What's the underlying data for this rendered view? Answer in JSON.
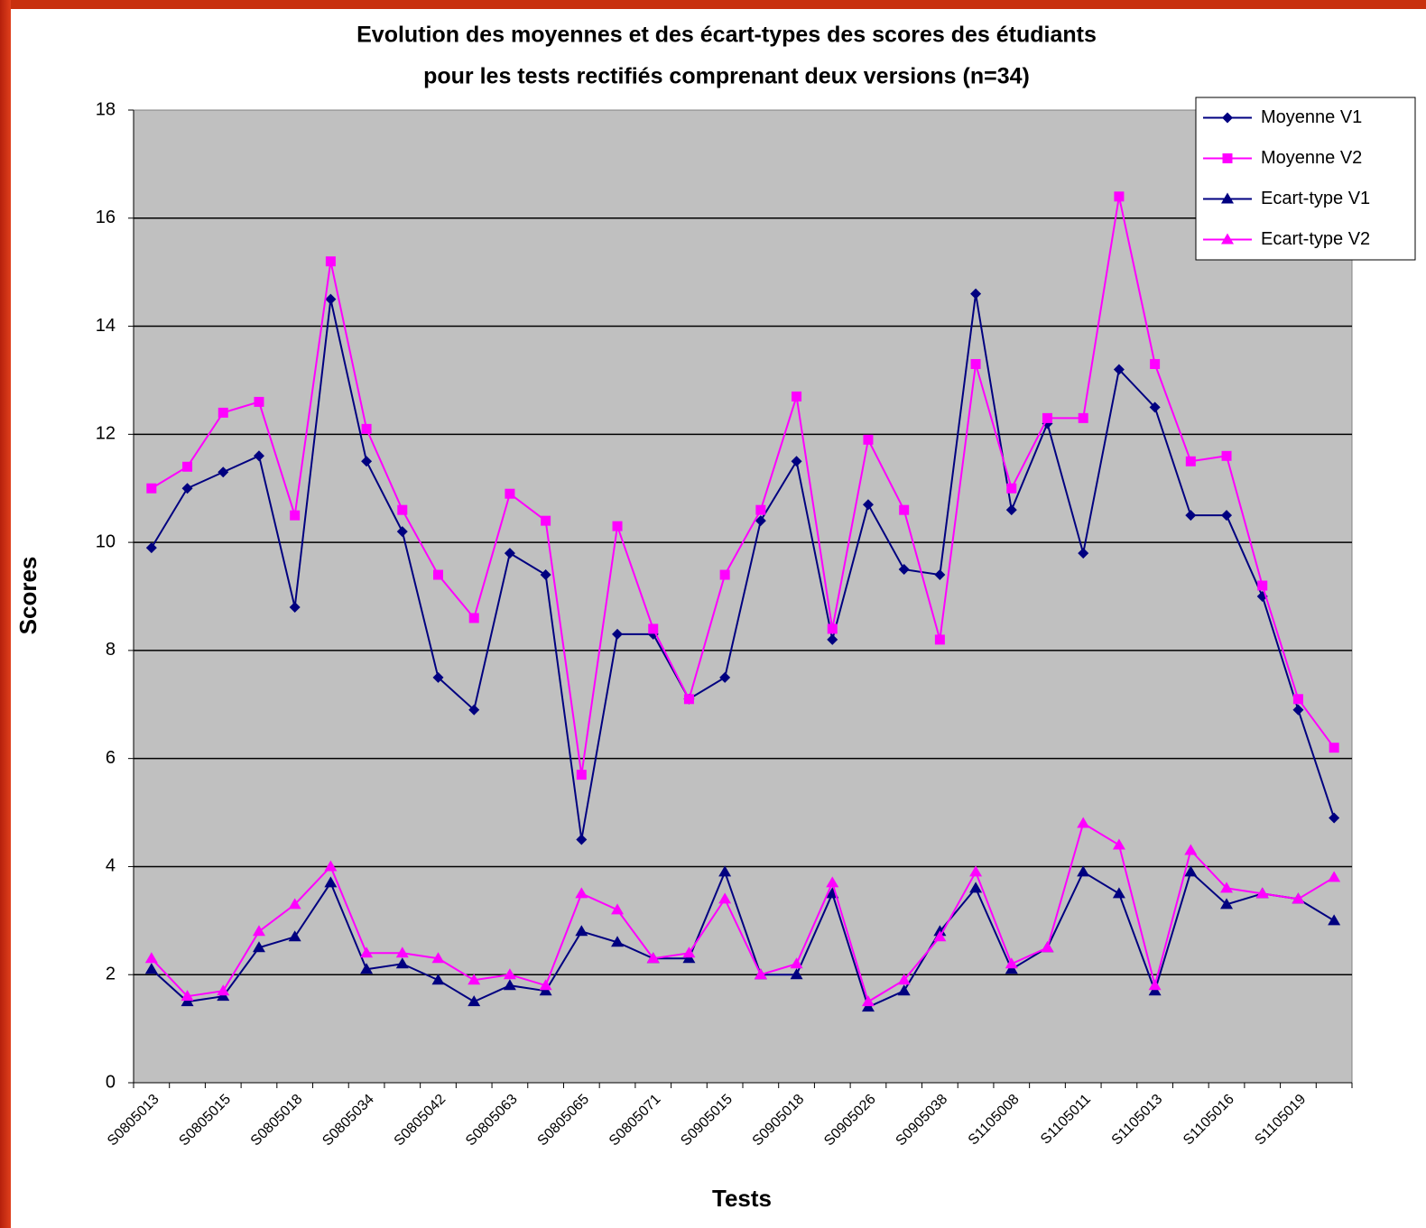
{
  "chart_data": {
    "type": "line",
    "title": [
      "Evolution des moyennes et des écart-types des scores des étudiants",
      "pour les tests rectifiés comprenant deux versions (n=34)"
    ],
    "x_label": "Tests",
    "y_label": "Scores",
    "categories": [
      "S0805013",
      null,
      "S0805015",
      null,
      "S0805018",
      null,
      "S0805034",
      null,
      "S0805042",
      null,
      "S0805063",
      null,
      "S0805065",
      null,
      "S0805071",
      null,
      "S0905015",
      null,
      "S0905018",
      null,
      "S0905026",
      null,
      "S0905038",
      null,
      "S1105008",
      null,
      "S1105011",
      null,
      "S1105013",
      null,
      "S1105016",
      null,
      "S1105019",
      null
    ],
    "series": [
      {
        "name": "Moyenne V1",
        "color": "#000080",
        "marker": "diamond",
        "values": [
          9.9,
          11.0,
          11.3,
          11.6,
          8.8,
          14.5,
          11.5,
          10.2,
          7.5,
          6.9,
          9.8,
          9.4,
          4.5,
          8.3,
          8.3,
          7.1,
          7.5,
          10.4,
          11.5,
          8.2,
          10.7,
          9.5,
          9.4,
          14.6,
          10.6,
          12.2,
          9.8,
          13.2,
          12.5,
          10.5,
          10.5,
          9.0,
          6.9,
          4.9
        ]
      },
      {
        "name": "Moyenne V2",
        "color": "#ff00ff",
        "marker": "square",
        "values": [
          11.0,
          11.4,
          12.4,
          12.6,
          10.5,
          15.2,
          12.1,
          10.6,
          9.4,
          8.6,
          10.9,
          10.4,
          5.7,
          10.3,
          8.4,
          7.1,
          9.4,
          10.6,
          12.7,
          8.4,
          11.9,
          10.6,
          8.2,
          13.3,
          11.0,
          12.3,
          12.3,
          16.4,
          13.3,
          11.5,
          11.6,
          9.2,
          7.1,
          6.2
        ]
      },
      {
        "name": "Ecart-type V1",
        "color": "#000080",
        "marker": "triangle",
        "values": [
          2.1,
          1.5,
          1.6,
          2.5,
          2.7,
          3.7,
          2.1,
          2.2,
          1.9,
          1.5,
          1.8,
          1.7,
          2.8,
          2.6,
          2.3,
          2.3,
          3.9,
          2.0,
          2.0,
          3.5,
          1.4,
          1.7,
          2.8,
          3.6,
          2.1,
          2.5,
          3.9,
          3.5,
          1.7,
          3.9,
          3.3,
          3.5,
          3.4,
          3.0
        ]
      },
      {
        "name": "Ecart-type V2",
        "color": "#ff00ff",
        "marker": "triangle",
        "values": [
          2.3,
          1.6,
          1.7,
          2.8,
          3.3,
          4.0,
          2.4,
          2.4,
          2.3,
          1.9,
          2.0,
          1.8,
          3.5,
          3.2,
          2.3,
          2.4,
          3.4,
          2.0,
          2.2,
          3.7,
          1.5,
          1.9,
          2.7,
          3.9,
          2.2,
          2.5,
          4.8,
          4.4,
          1.8,
          4.3,
          3.6,
          3.5,
          3.4,
          3.8
        ]
      }
    ],
    "ylim": [
      0,
      18
    ],
    "yticks": [
      0,
      2,
      4,
      6,
      8,
      10,
      12,
      14,
      16,
      18
    ],
    "grid": true,
    "legend": "top-right"
  }
}
